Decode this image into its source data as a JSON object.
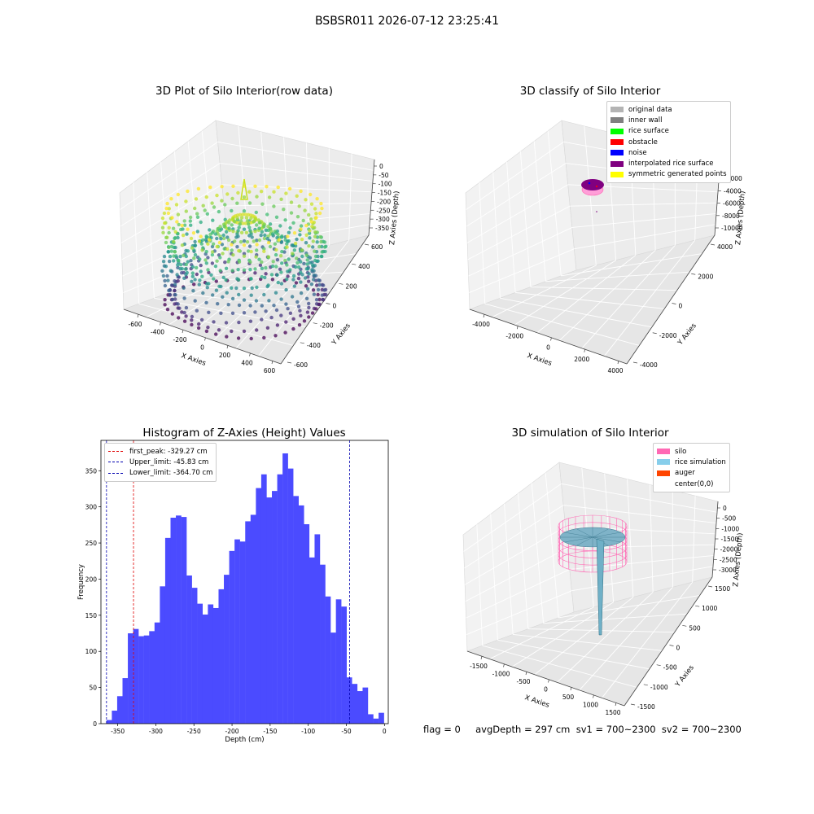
{
  "suptitle": "BSBSR011 2026-07-12 23:25:41",
  "footer": "flag = 0     avgDepth = 297 cm  sv1 = 700~2300  sv2 = 700~2300",
  "chart_data": [
    {
      "type": "scatter",
      "subtype": "3d",
      "title": "3D Plot of Silo Interior(row data)",
      "xlabel": "X Axies",
      "ylabel": "Y Axies",
      "zlabel": "Z Axies (Depth)",
      "x_ticks": [
        "-600",
        "-400",
        "-200",
        "0",
        "200",
        "400",
        "600"
      ],
      "y_ticks": [
        "-600",
        "-400",
        "-200",
        "0",
        "200",
        "400",
        "600"
      ],
      "z_ticks": [
        "0",
        "-50",
        "-100",
        "-150",
        "-200",
        "-250",
        "-300",
        "-350"
      ],
      "xlim": [
        -700,
        700
      ],
      "ylim": [
        -700,
        700
      ],
      "zlim": [
        -380,
        10
      ],
      "colormap": "viridis",
      "silo_radius": 600,
      "depth_range": [
        -370,
        -40
      ]
    },
    {
      "type": "scatter",
      "subtype": "3d",
      "title": "3D classify of Silo Interior",
      "xlabel": "X Axies",
      "ylabel": "Y Axies",
      "zlabel": "Z Axies (Depth)",
      "x_ticks": [
        "-4000",
        "-2000",
        "0",
        "2000",
        "4000"
      ],
      "y_ticks": [
        "-4000",
        "-2000",
        "0",
        "2000",
        "4000"
      ],
      "z_ticks": [
        "0",
        "-2000",
        "-4000",
        "-6000",
        "-8000",
        "-10000"
      ],
      "legend": [
        {
          "label": "original data",
          "color": "#b4b4b4"
        },
        {
          "label": "inner wall",
          "color": "#808080"
        },
        {
          "label": "rice surface",
          "color": "#00ff00"
        },
        {
          "label": "obstacle",
          "color": "#ff0000"
        },
        {
          "label": "noise",
          "color": "#0000ff"
        },
        {
          "label": "interpolated rice surface",
          "color": "#800080"
        },
        {
          "label": "symmetric generated points",
          "color": "#ffff00"
        }
      ]
    },
    {
      "type": "bar",
      "subtype": "histogram",
      "title": "Histogram of Z-Axies (Height) Values",
      "xlabel": "Depth (cm)",
      "ylabel": "Frequency",
      "xlim": [
        -372,
        5
      ],
      "ylim": [
        0,
        392
      ],
      "x_ticks": [
        -350,
        -300,
        -250,
        -200,
        -150,
        -100,
        -50,
        0
      ],
      "y_ticks": [
        0,
        50,
        100,
        150,
        200,
        250,
        300,
        350
      ],
      "bar_color": "#4b4bff",
      "bin_start": -364.7,
      "bin_width": 7.0,
      "values": [
        5,
        18,
        38,
        63,
        125,
        131,
        121,
        122,
        128,
        140,
        190,
        257,
        285,
        288,
        286,
        205,
        188,
        166,
        151,
        165,
        160,
        186,
        206,
        239,
        255,
        252,
        280,
        289,
        326,
        345,
        313,
        322,
        345,
        374,
        353,
        315,
        302,
        276,
        230,
        262,
        220,
        176,
        126,
        172,
        162,
        64,
        55,
        45,
        50,
        13,
        7,
        15
      ],
      "vlines": [
        {
          "label": "first_peak: -329.27 cm",
          "x": -329.27,
          "color": "#e00000"
        },
        {
          "label": "Upper_limit: -45.83 cm",
          "x": -45.83,
          "color": "#0000b0"
        },
        {
          "label": "Lower_limit: -364.70 cm",
          "x": -364.7,
          "color": "#0000b0"
        }
      ]
    },
    {
      "type": "area",
      "subtype": "3d-surface",
      "title": "3D simulation of Silo Interior",
      "xlabel": "X Axies",
      "ylabel": "Y Axies",
      "zlabel": "Z Axies (Depth)",
      "x_ticks": [
        "-1500",
        "-1000",
        "-500",
        "0",
        "500",
        "1000",
        "1500"
      ],
      "y_ticks": [
        "-1500",
        "-1000",
        "-500",
        "0",
        "500",
        "1000",
        "1500"
      ],
      "z_ticks": [
        "0",
        "-500",
        "-1000",
        "-1500",
        "-2000",
        "-2500",
        "-3000"
      ],
      "legend": [
        {
          "label": "silo",
          "color": "#ff69b4"
        },
        {
          "label": "rice simulation",
          "color": "#87ceeb"
        },
        {
          "label": "auger",
          "color": "#ff4500"
        },
        {
          "label": "center(0,0)",
          "color": ""
        }
      ]
    }
  ]
}
